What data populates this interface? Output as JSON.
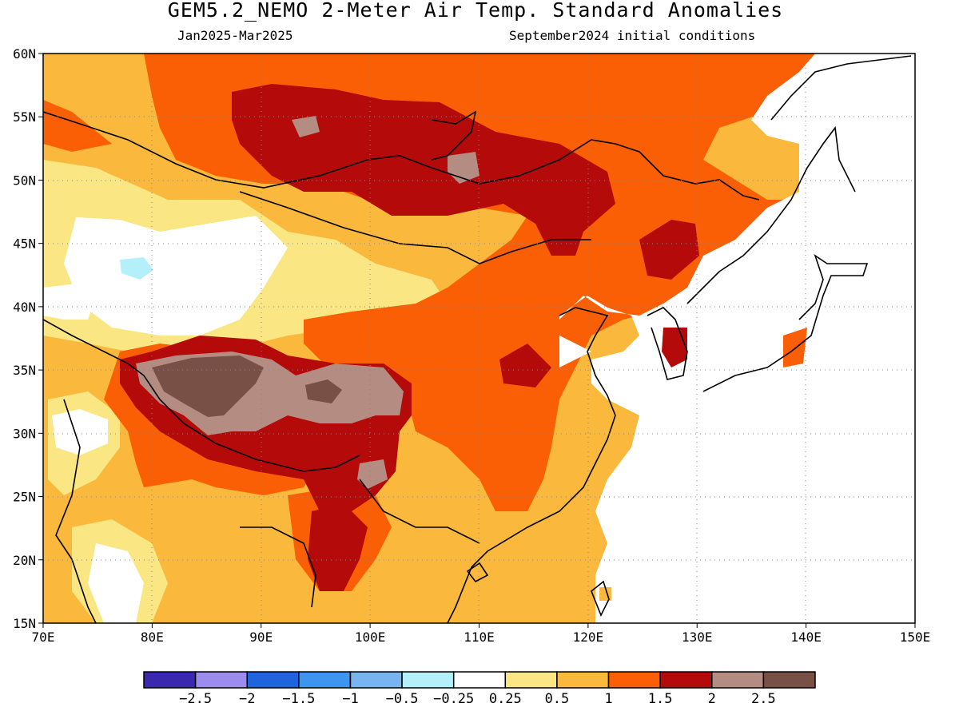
{
  "header": {
    "title": "GEM5.2_NEMO 2-Meter Air Temp. Standard Anomalies",
    "period": "Jan2025-Mar2025",
    "init": "September2024 initial conditions"
  },
  "map": {
    "lon_range": [
      70,
      150
    ],
    "lat_range": [
      15,
      60
    ],
    "lon_ticks": [
      "70E",
      "80E",
      "90E",
      "100E",
      "110E",
      "120E",
      "130E",
      "140E",
      "150E"
    ],
    "lat_ticks": [
      "60N",
      "55N",
      "50N",
      "45N",
      "40N",
      "35N",
      "30N",
      "25N",
      "20N",
      "15N"
    ],
    "gridlines": "dotted",
    "land_color": "#ffffff",
    "coast_color": "#000000"
  },
  "colorbar": {
    "colors": [
      "#3a28b0",
      "#9c8cf0",
      "#1f64dc",
      "#3c96f0",
      "#78b4f0",
      "#b4f0fa",
      "#ffffff",
      "#fae682",
      "#fab83c",
      "#fa5f05",
      "#b40a0a",
      "#b48c82",
      "#785046"
    ],
    "labels": [
      "-2.5",
      "-2",
      "-1.5",
      "-1",
      "-0.5",
      "-0.25",
      "0.25",
      "0.5",
      "1",
      "1.5",
      "2",
      "2.5"
    ]
  },
  "colors": {
    "c025": "#fae682",
    "c05": "#fab83c",
    "c1": "#fa5f05",
    "c15": "#b40a0a",
    "c2": "#b48c82",
    "c25": "#785046",
    "neg": "#b4f0fa"
  }
}
